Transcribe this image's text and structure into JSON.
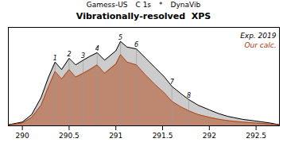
{
  "chart_data": {
    "type": "area",
    "title": "Vibrationally-resolved  XPS",
    "annotations": [
      "Gamess-US",
      "C 1s",
      "*",
      "DynaVib"
    ],
    "series": [
      {
        "name": "Exp. 2019",
        "color": "black",
        "x": [
          289.85,
          290.0,
          290.1,
          290.2,
          290.28,
          290.35,
          290.42,
          290.5,
          290.57,
          290.65,
          290.72,
          290.8,
          290.88,
          291.0,
          291.05,
          291.12,
          291.22,
          291.32,
          291.42,
          291.52,
          291.6,
          291.7,
          291.78,
          291.88,
          292.0,
          292.1,
          292.2,
          292.35,
          292.5,
          292.65,
          292.75
        ],
        "values": [
          0.01,
          0.04,
          0.12,
          0.3,
          0.52,
          0.68,
          0.6,
          0.72,
          0.65,
          0.7,
          0.74,
          0.78,
          0.7,
          0.8,
          0.9,
          0.84,
          0.82,
          0.72,
          0.62,
          0.52,
          0.42,
          0.34,
          0.28,
          0.22,
          0.17,
          0.13,
          0.1,
          0.07,
          0.05,
          0.03,
          0.01
        ]
      },
      {
        "name": "Our calc.",
        "color": "#aa3300",
        "x": [
          289.85,
          290.0,
          290.1,
          290.2,
          290.28,
          290.35,
          290.42,
          290.5,
          290.57,
          290.65,
          290.72,
          290.8,
          290.88,
          291.0,
          291.05,
          291.12,
          291.22,
          291.32,
          291.42,
          291.52,
          291.6,
          291.7,
          291.78,
          291.88,
          292.0,
          292.1,
          292.2,
          292.35,
          292.5,
          292.65,
          292.75
        ],
        "values": [
          0.01,
          0.03,
          0.09,
          0.22,
          0.42,
          0.58,
          0.5,
          0.6,
          0.52,
          0.56,
          0.6,
          0.65,
          0.56,
          0.66,
          0.76,
          0.68,
          0.65,
          0.54,
          0.44,
          0.35,
          0.26,
          0.2,
          0.16,
          0.12,
          0.09,
          0.07,
          0.055,
          0.04,
          0.03,
          0.02,
          0.01
        ]
      }
    ],
    "xlim": [
      289.85,
      292.75
    ],
    "xticks": [
      290,
      290.5,
      291,
      291.5,
      292,
      292.5
    ],
    "ylim": [
      0,
      1.05
    ],
    "tick_labels": "x",
    "legend": "upper right",
    "vib_x": [
      290.35,
      290.5,
      290.65,
      290.8,
      291.05,
      291.22,
      291.6,
      291.78
    ],
    "vib_labels": [
      "1",
      "2",
      "3",
      "4",
      "5",
      "6",
      "7",
      "8"
    ]
  }
}
